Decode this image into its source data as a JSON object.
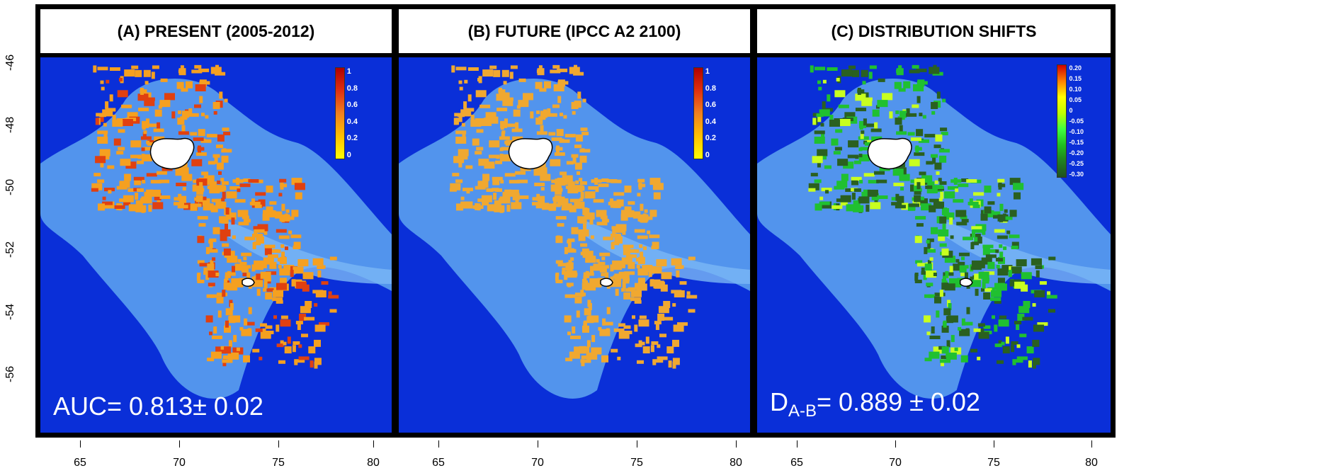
{
  "y_axis": {
    "ticks": [
      "-46",
      "-48",
      "-50",
      "-52",
      "-54",
      "-56"
    ]
  },
  "x_axis": {
    "ticks": [
      "65",
      "70",
      "75",
      "80"
    ]
  },
  "panels": [
    {
      "title": "(A) PRESENT (2005-2012)",
      "stat": {
        "prefix": "AUC= 0.813± 0.02",
        "sub": "",
        "suffix": ""
      },
      "legend": {
        "labels": [
          "1",
          "0.8",
          "0.6",
          "0.4",
          "0.2",
          "0"
        ],
        "gradient": [
          "#b00000",
          "#e03010",
          "#f08020",
          "#ffc000",
          "#ffff00"
        ]
      }
    },
    {
      "title": "(B) FUTURE (IPCC A2 2100)",
      "stat": {
        "prefix": "",
        "sub": "",
        "suffix": ""
      },
      "legend": {
        "labels": [
          "1",
          "0.8",
          "0.6",
          "0.4",
          "0.2",
          "0"
        ],
        "gradient": [
          "#b00000",
          "#e03010",
          "#f08020",
          "#ffc000",
          "#ffff00"
        ]
      }
    },
    {
      "title": "(C) DISTRIBUTION SHIFTS",
      "stat": {
        "prefix": "D",
        "sub": "A-B",
        "suffix": "= 0.889 ± 0.02"
      },
      "legend": {
        "labels": [
          "0.20",
          "0.15",
          "0.10",
          "0.05",
          "0",
          "-0.05",
          "-0.10",
          "-0.15",
          "-0.20",
          "-0.25",
          "-0.30"
        ],
        "gradient": [
          "#d00000",
          "#ff8000",
          "#ffff00",
          "#c0ff00",
          "#40ff40",
          "#20c020",
          "#208020",
          "#205020"
        ]
      }
    }
  ],
  "colors": {
    "ocean_deep": "#0a2fd8",
    "ocean_shelf": "#5aa0f0",
    "present_habitat": "#f5a020",
    "present_high": "#e04010",
    "future_habitat": "#f0a830",
    "shift_pos": "#c8ff20",
    "shift_neg": "#20c030",
    "shift_dark": "#2a6020"
  }
}
